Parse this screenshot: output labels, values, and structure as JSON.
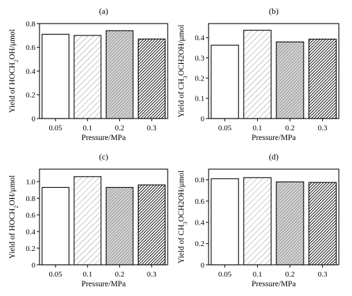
{
  "chart_data": [
    {
      "panel": "(a)",
      "type": "bar",
      "categories": [
        "0.05",
        "0.1",
        "0.2",
        "0.3"
      ],
      "values": [
        0.71,
        0.7,
        0.74,
        0.67
      ],
      "xlabel": "Pressure/MPa",
      "ylabel": "Yield of HOCH2OH/μmol",
      "ylim": [
        0,
        0.8
      ],
      "yticks": [
        "0",
        "0.2",
        "0.4",
        "0.6",
        "0.8"
      ],
      "yticks_values": [
        0,
        0.2,
        0.4,
        0.6,
        0.8
      ]
    },
    {
      "panel": "(b)",
      "type": "bar",
      "categories": [
        "0.05",
        "0.1",
        "0.2",
        "0.3"
      ],
      "values": [
        0.363,
        0.437,
        0.379,
        0.393
      ],
      "xlabel": "Pressure/MPa",
      "ylabel": "Yield of CH3OCH2OH/μmol",
      "ylim": [
        0,
        0.47
      ],
      "yticks": [
        "0",
        "0.1",
        "0.2",
        "0.3",
        "0.4"
      ],
      "yticks_values": [
        0,
        0.1,
        0.2,
        0.3,
        0.4
      ]
    },
    {
      "panel": "(c)",
      "type": "bar",
      "categories": [
        "0.05",
        "0.1",
        "0.2",
        "0.3"
      ],
      "values": [
        0.93,
        1.06,
        0.93,
        0.96
      ],
      "xlabel": "Pressure/MPa",
      "ylabel": "Yield of HOCH2OH/μmol",
      "ylim": [
        0,
        1.15
      ],
      "yticks": [
        "0",
        "0.2",
        "0.4",
        "0.6",
        "0.8",
        "1.0"
      ],
      "yticks_values": [
        0,
        0.2,
        0.4,
        0.6,
        0.8,
        1.0
      ]
    },
    {
      "panel": "(d)",
      "type": "bar",
      "categories": [
        "0.05",
        "0.1",
        "0.2",
        "0.3"
      ],
      "values": [
        0.81,
        0.82,
        0.78,
        0.775
      ],
      "xlabel": "Pressure/MPa",
      "ylabel": "Yield of CH3OCH2OH/μmol",
      "ylim": [
        0,
        0.9
      ],
      "yticks": [
        "0",
        "0.2",
        "0.4",
        "0.6",
        "0.8"
      ],
      "yticks_values": [
        0,
        0.2,
        0.4,
        0.6,
        0.8
      ]
    }
  ],
  "bar_fills": [
    "white",
    "light-hatch",
    "medium-hatch",
    "dense-hatch"
  ],
  "colors": {
    "axis": "#000000",
    "bar_edge": "#000000",
    "background": "#ffffff"
  }
}
